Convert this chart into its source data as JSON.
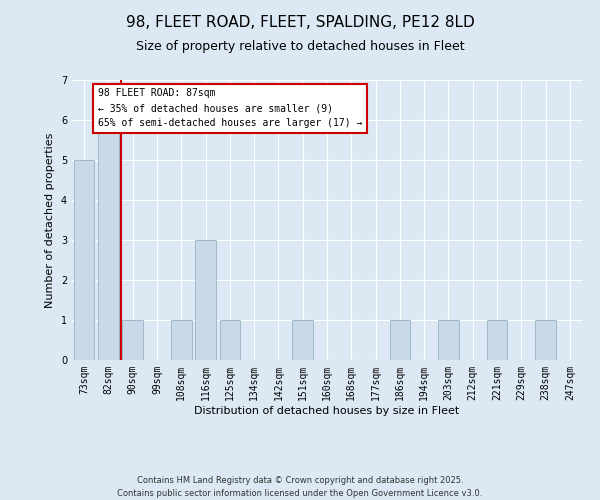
{
  "title": "98, FLEET ROAD, FLEET, SPALDING, PE12 8LD",
  "subtitle": "Size of property relative to detached houses in Fleet",
  "xlabel": "Distribution of detached houses by size in Fleet",
  "ylabel": "Number of detached properties",
  "categories": [
    "73sqm",
    "82sqm",
    "90sqm",
    "99sqm",
    "108sqm",
    "116sqm",
    "125sqm",
    "134sqm",
    "142sqm",
    "151sqm",
    "160sqm",
    "168sqm",
    "177sqm",
    "186sqm",
    "194sqm",
    "203sqm",
    "212sqm",
    "221sqm",
    "229sqm",
    "238sqm",
    "247sqm"
  ],
  "bar_heights": [
    5,
    6,
    1,
    0,
    1,
    3,
    1,
    0,
    0,
    1,
    0,
    0,
    0,
    1,
    0,
    1,
    0,
    1,
    0,
    1,
    0
  ],
  "bar_color": "#c9d9e8",
  "bar_edge_color": "#a0b8cc",
  "vline_color": "#cc0000",
  "vline_x": 1.5,
  "annotation_title": "98 FLEET ROAD: 87sqm",
  "annotation_line1": "← 35% of detached houses are smaller (9)",
  "annotation_line2": "65% of semi-detached houses are larger (17) →",
  "annotation_box_color": "#ffffff",
  "annotation_box_edge_color": "#cc0000",
  "ylim": [
    0,
    7
  ],
  "yticks": [
    0,
    1,
    2,
    3,
    4,
    5,
    6,
    7
  ],
  "background_color": "#dce9f5",
  "footer_line1": "Contains HM Land Registry data © Crown copyright and database right 2025.",
  "footer_line2": "Contains public sector information licensed under the Open Government Licence v3.0.",
  "title_fontsize": 11,
  "subtitle_fontsize": 9,
  "label_fontsize": 8,
  "tick_fontsize": 7,
  "annotation_fontsize": 7,
  "footer_fontsize": 6
}
